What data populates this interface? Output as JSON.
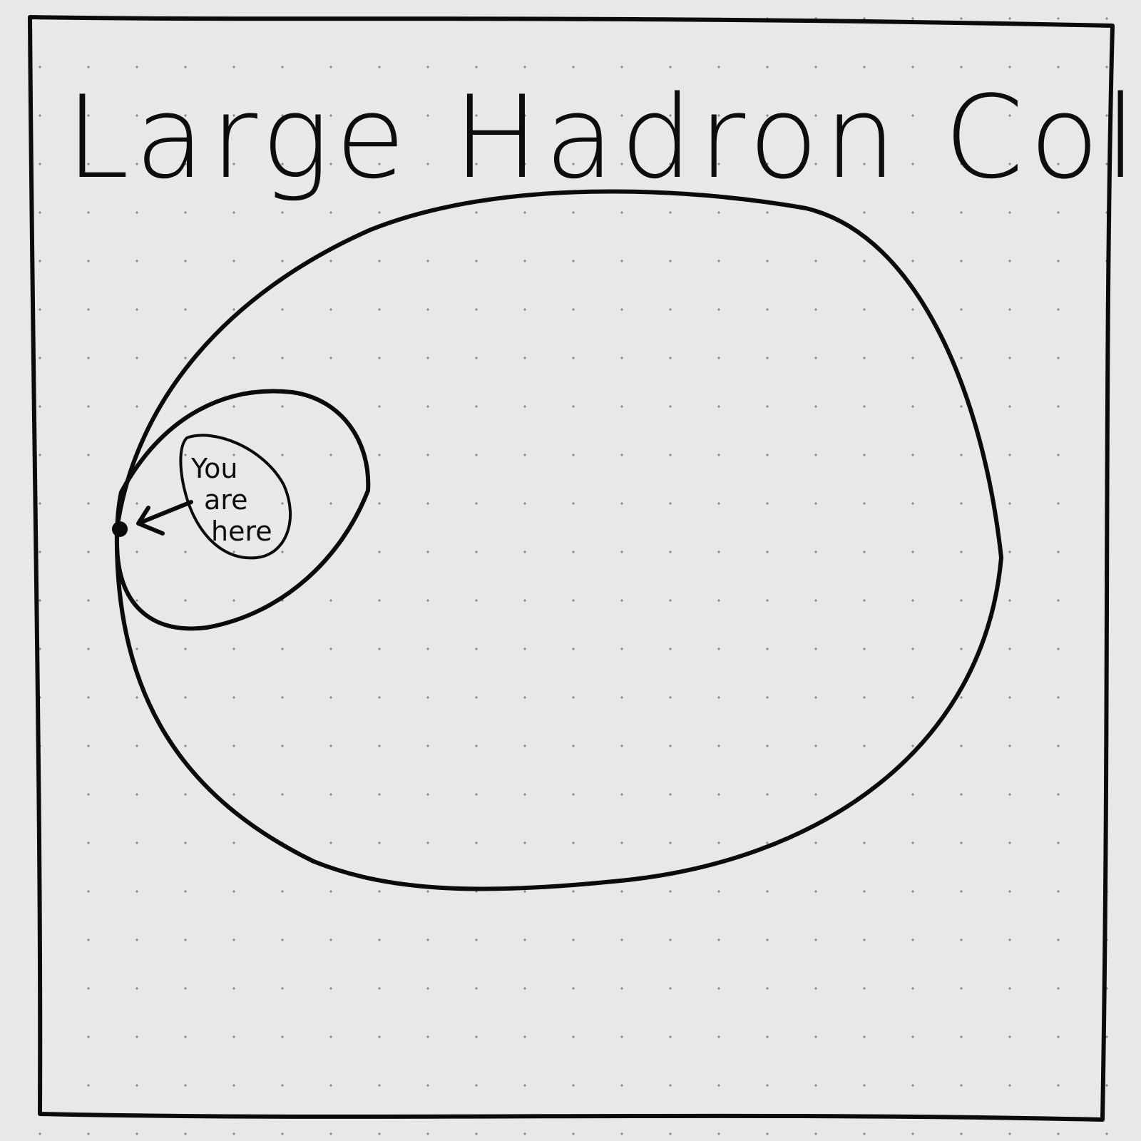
{
  "title": "Large Hadron Collider",
  "callout": {
    "lines": [
      "You",
      "are",
      "here"
    ]
  },
  "colors": {
    "paper": "#e8e8e6",
    "ink": "#0b0b0b",
    "grid_dot": "#8b8b89"
  }
}
